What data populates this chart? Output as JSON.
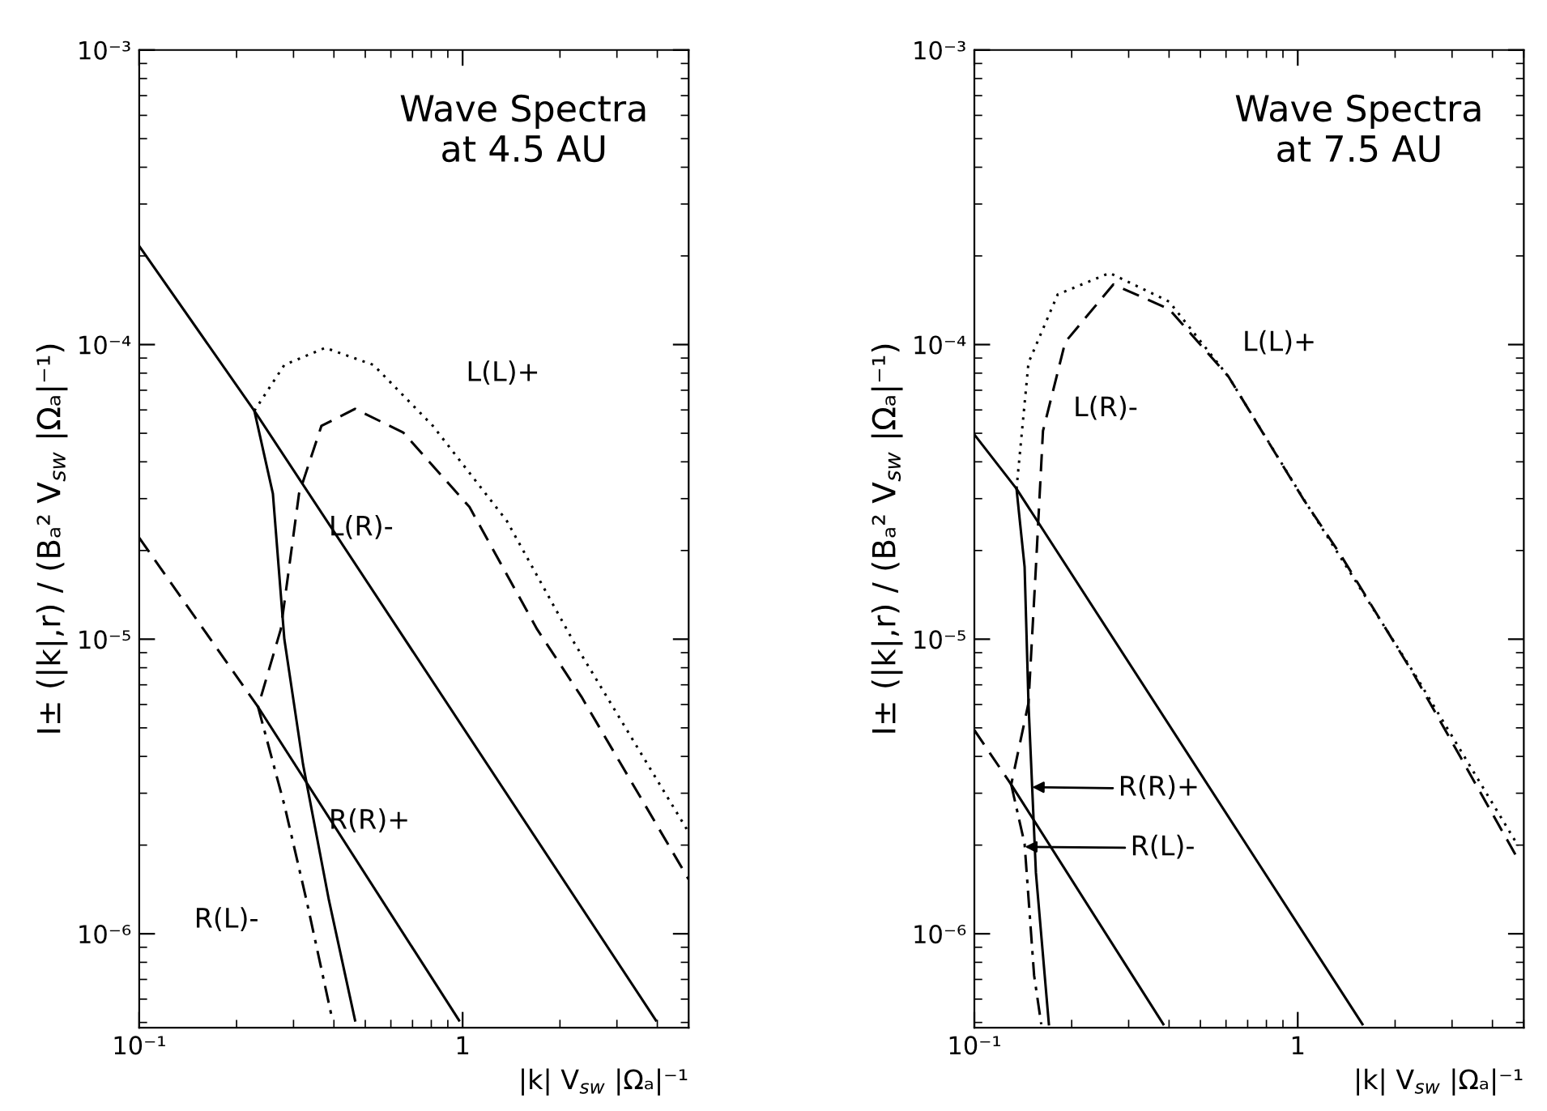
{
  "chart_data": [
    {
      "type": "line",
      "title": "Wave Spectra\nat 4.5 AU",
      "xlabel": "|k| V$_{sw}$ |Ωₐ|⁻¹",
      "ylabel": "I± (|k|,r) / (Bₐ² V$_{sw}$ |Ωₐ|⁻¹)",
      "log": "xy",
      "xlim": [
        0.1,
        5
      ],
      "ylim": [
        4.8e-07,
        0.001
      ],
      "xticks": [
        {
          "value": 0.1,
          "label": "10⁻¹"
        },
        1
      ],
      "yticks": [
        {
          "value": 1e-06,
          "label": "10⁻⁶"
        },
        {
          "value": 1e-05,
          "label": "10⁻⁵"
        },
        {
          "value": 0.0001,
          "label": "10⁻⁴"
        },
        {
          "value": 0.001,
          "label": "10⁻³"
        }
      ],
      "grid": false,
      "series": [
        {
          "color": "#000000",
          "line_style": "solid",
          "x": [
            0.1,
            0.227,
            0.259,
            0.281,
            0.321,
            0.386,
            0.465
          ],
          "values": [
            0.000216,
            5.96e-05,
            3.12e-05,
            1e-05,
            3.76e-06,
            1.3e-06,
            5.08e-07
          ]
        },
        {
          "color": "#000000",
          "line_style": "solid",
          "x": [
            0.227,
            3.96
          ],
          "values": [
            5.96e-05,
            5.08e-07
          ]
        },
        {
          "color": "#000000",
          "line_style": "dotted",
          "x": [
            0.227,
            0.281,
            0.376,
            0.53,
            0.809,
            1.37,
            2.21,
            5.0
          ],
          "values": [
            5.96e-05,
            8.53e-05,
            9.75e-05,
            8.53e-05,
            5.3e-05,
            2.52e-05,
            9.75e-06,
            2.21e-06
          ]
        },
        {
          "color": "#000000",
          "line_style": "dashed",
          "x": [
            0.1,
            0.233,
            0.274,
            0.312,
            0.366,
            0.465,
            0.655,
            1.05,
            1.7,
            2.33,
            5.0
          ],
          "values": [
            2.21e-05,
            5.89e-06,
            1.08e-05,
            3.12e-05,
            5.3e-05,
            6.05e-05,
            5.03e-05,
            2.81e-05,
            1.08e-05,
            6.38e-06,
            1.53e-06
          ]
        },
        {
          "color": "#000000",
          "line_style": "solid",
          "x": [
            0.233,
            0.975
          ],
          "values": [
            5.89e-06,
            5.08e-07
          ]
        },
        {
          "color": "#000000",
          "line_style": "dashdot",
          "x": [
            0.233,
            0.281,
            0.329,
            0.396
          ],
          "values": [
            5.89e-06,
            2.74e-06,
            1.3e-06,
            5.08e-07
          ]
        }
      ],
      "annotations": [
        "L(L)+",
        "L(R)-",
        "R(R)+",
        "R(L)-"
      ]
    },
    {
      "type": "line",
      "title": "Wave Spectra\nat 7.5 AU",
      "xlabel": "|k| V$_{sw}$ |Ωₐ|⁻¹",
      "ylabel": "I± (|k|,r) / (Bₐ² V$_{sw}$ |Ωₐ|⁻¹)",
      "log": "xy",
      "xlim": [
        0.1,
        5
      ],
      "ylim": [
        4.8e-07,
        0.001
      ],
      "xticks": [
        {
          "value": 0.1,
          "label": "10⁻¹"
        },
        1
      ],
      "yticks": [
        {
          "value": 1e-06,
          "label": "10⁻⁶"
        },
        {
          "value": 1e-05,
          "label": "10⁻⁵"
        },
        {
          "value": 0.0001,
          "label": "10⁻⁴"
        },
        {
          "value": 0.001,
          "label": "10⁻³"
        }
      ],
      "grid": false,
      "series": [
        {
          "color": "#000000",
          "line_style": "solid",
          "x": [
            0.1,
            0.135,
            0.143,
            0.147,
            0.155,
            0.17
          ],
          "values": [
            4.95e-05,
            3.24e-05,
            1.76e-05,
            6.07e-06,
            1.61e-06,
            4.93e-07
          ]
        },
        {
          "color": "#000000",
          "line_style": "solid",
          "x": [
            0.135,
            1.585
          ],
          "values": [
            3.24e-05,
            4.93e-07
          ]
        },
        {
          "color": "#000000",
          "line_style": "dotted",
          "x": [
            0.135,
            0.147,
            0.181,
            0.262,
            0.4,
            0.611,
            1.04,
            2.3,
            4.8
          ],
          "values": [
            3.24e-05,
            8.67e-05,
            0.000148,
            0.000175,
            0.00014,
            7.78e-05,
            3e-05,
            7.6e-06,
            1.99e-06
          ]
        },
        {
          "color": "#000000",
          "line_style": "dashed",
          "x": [
            0.1,
            0.13,
            0.147,
            0.155,
            0.163,
            0.191,
            0.269,
            0.4,
            0.611,
            1.04,
            1.35,
            2.3,
            4.8
          ],
          "values": [
            4.91e-06,
            3.21e-06,
            6.07e-06,
            1.76e-05,
            5.09e-05,
            0.000102,
            0.00016,
            0.000132,
            7.78e-05,
            2.99e-05,
            1.95e-05,
            7.5e-06,
            1.79e-06
          ]
        },
        {
          "color": "#000000",
          "line_style": "solid",
          "x": [
            0.13,
            0.384
          ],
          "values": [
            3.21e-06,
            4.93e-07
          ]
        },
        {
          "color": "#000000",
          "line_style": "dashdot",
          "x": [
            0.13,
            0.143,
            0.153,
            0.161
          ],
          "values": [
            3.21e-06,
            2.02e-06,
            7.23e-07,
            4.93e-07
          ]
        }
      ],
      "annotations": [
        "L(L)+",
        "L(R)-",
        "R(R)+",
        "R(L)-"
      ]
    }
  ]
}
